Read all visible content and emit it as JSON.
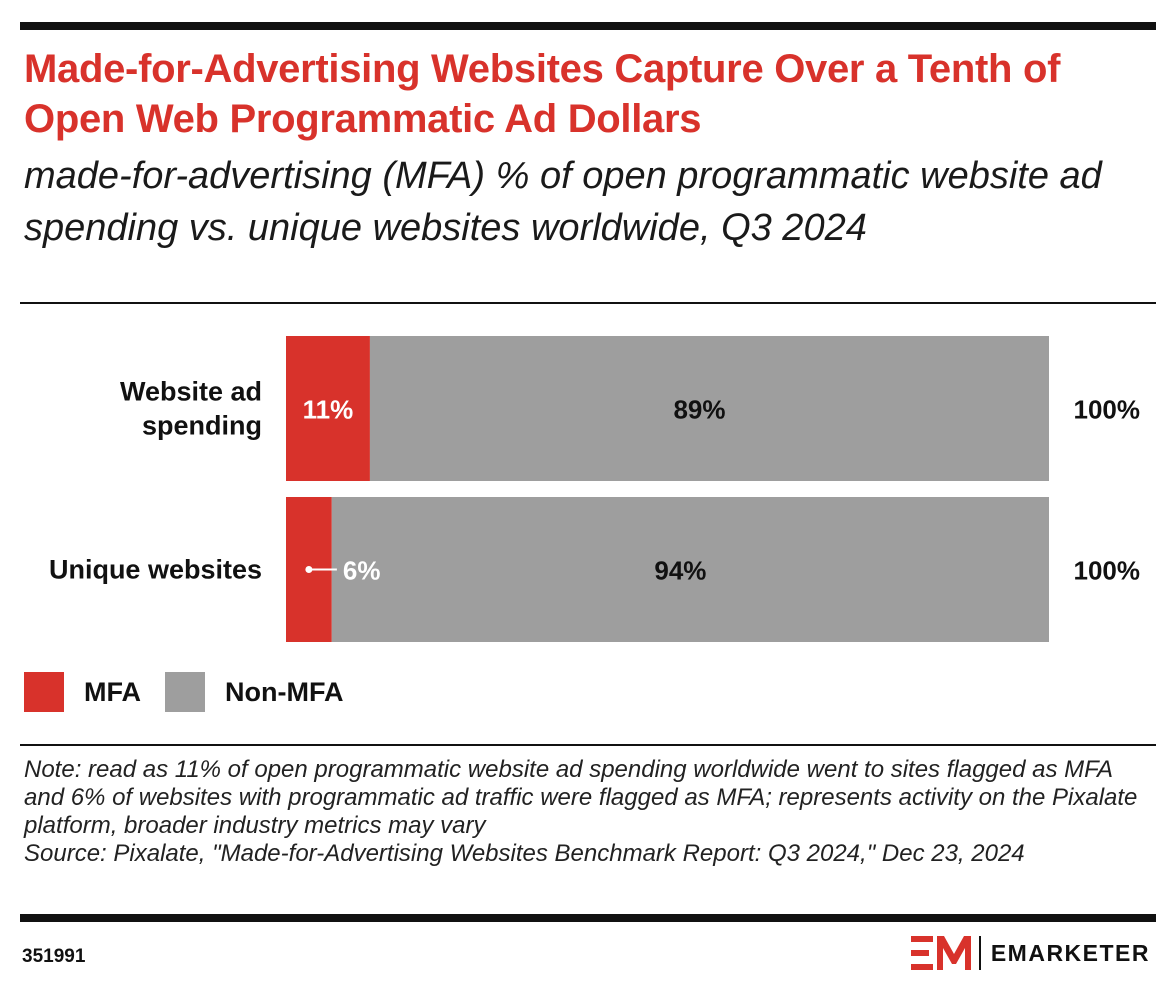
{
  "title": "Made-for-Advertising Websites Capture Over a Tenth of Open Web Programmatic Ad Dollars",
  "subtitle": "made-for-advertising (MFA) % of open programmatic website ad spending vs. unique websites worldwide, Q3 2024",
  "colors": {
    "accent": "#d8322b",
    "mfa": "#d8322b",
    "non_mfa": "#9e9e9e",
    "rule": "#111111"
  },
  "chart_data": {
    "type": "bar",
    "orientation": "horizontal",
    "stacked": true,
    "categories": [
      "Website ad spending",
      "Unique websites"
    ],
    "category_labels": [
      [
        "Website ad",
        "spending"
      ],
      [
        "Unique websites"
      ]
    ],
    "series": [
      {
        "name": "MFA",
        "values": [
          11,
          6
        ],
        "labels": [
          "11%",
          "6%"
        ],
        "color": "#d8322b"
      },
      {
        "name": "Non-MFA",
        "values": [
          89,
          94
        ],
        "labels": [
          "89%",
          "94%"
        ],
        "color": "#9e9e9e"
      }
    ],
    "totals": [
      "100%",
      "100%"
    ],
    "xlim": [
      0,
      100
    ],
    "grid": false,
    "legend_position": "bottom-left"
  },
  "legend": {
    "items": [
      "MFA",
      "Non-MFA"
    ]
  },
  "note": "Note: read as 11% of open programmatic website ad spending worldwide went to sites flagged as MFA and 6% of websites with programmatic ad traffic were flagged as MFA; represents activity on the Pixalate platform, broader industry metrics may vary",
  "source": "Source: Pixalate, \"Made-for-Advertising Websites Benchmark Report: Q3 2024,\" Dec 23, 2024",
  "footer": {
    "chart_id": "351991",
    "brand": "EMARKETER",
    "logo_mark": "EM"
  }
}
